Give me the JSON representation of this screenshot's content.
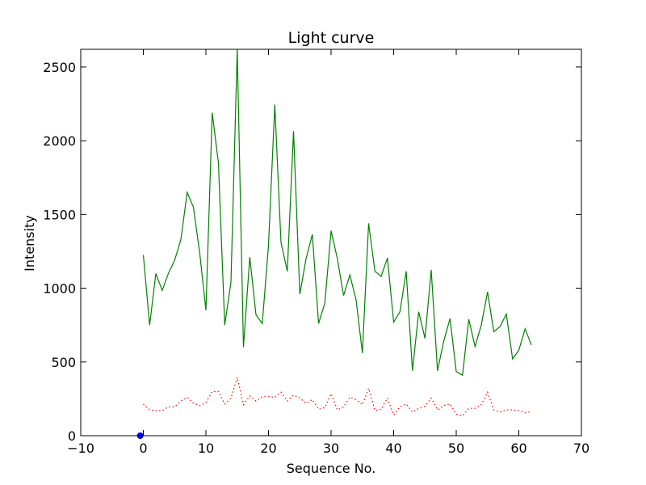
{
  "chart_data": {
    "type": "line",
    "title": "Light curve",
    "xlabel": "Sequence No.",
    "ylabel": "Intensity",
    "xlim": [
      -10,
      70
    ],
    "ylim": [
      0,
      2620
    ],
    "xticks": [
      -10,
      0,
      10,
      20,
      30,
      40,
      50,
      60,
      70
    ],
    "yticks": [
      0,
      500,
      1000,
      1500,
      2000,
      2500
    ],
    "grid": false,
    "legend": "none",
    "series": [
      {
        "style": "solid",
        "color": "#008000",
        "x": [
          0,
          1,
          2,
          3,
          4,
          5,
          6,
          7,
          8,
          9,
          10,
          11,
          12,
          13,
          14,
          15,
          16,
          17,
          18,
          19,
          20,
          21,
          22,
          23,
          24,
          25,
          26,
          27,
          28,
          29,
          30,
          31,
          32,
          33,
          34,
          35,
          36,
          37,
          38,
          39,
          40,
          41,
          42,
          43,
          44,
          45,
          46,
          47,
          48,
          49,
          50,
          51,
          52,
          53,
          54,
          55,
          56,
          57,
          58,
          59,
          60,
          61,
          62
        ],
        "y": [
          1225,
          750,
          1100,
          985,
          1100,
          1190,
          1330,
          1650,
          1550,
          1240,
          850,
          2190,
          1850,
          750,
          1040,
          2620,
          600,
          1210,
          820,
          760,
          1290,
          2245,
          1310,
          1115,
          2065,
          960,
          1200,
          1365,
          760,
          900,
          1390,
          1200,
          950,
          1090,
          920,
          560,
          1440,
          1115,
          1080,
          1205,
          770,
          840,
          1115,
          440,
          840,
          660,
          1125,
          440,
          640,
          795,
          435,
          410,
          790,
          605,
          750,
          975,
          705,
          740,
          825,
          520,
          580,
          725,
          615
        ]
      },
      {
        "style": "dotted",
        "color": "#ff0000",
        "x": [
          0,
          1,
          2,
          3,
          4,
          5,
          6,
          7,
          8,
          9,
          10,
          11,
          12,
          13,
          14,
          15,
          16,
          17,
          18,
          19,
          20,
          21,
          22,
          23,
          24,
          25,
          26,
          27,
          28,
          29,
          30,
          31,
          32,
          33,
          34,
          35,
          36,
          37,
          38,
          39,
          40,
          41,
          42,
          43,
          44,
          45,
          46,
          47,
          48,
          49,
          50,
          51,
          52,
          53,
          54,
          55,
          56,
          57,
          58,
          59,
          60,
          61,
          62
        ],
        "y": [
          215,
          175,
          170,
          170,
          195,
          195,
          235,
          260,
          220,
          205,
          225,
          300,
          300,
          215,
          255,
          395,
          210,
          270,
          235,
          265,
          265,
          260,
          295,
          235,
          275,
          255,
          220,
          245,
          180,
          190,
          285,
          175,
          195,
          260,
          245,
          210,
          320,
          170,
          180,
          255,
          140,
          195,
          215,
          160,
          185,
          200,
          255,
          175,
          205,
          215,
          145,
          135,
          185,
          185,
          210,
          295,
          175,
          160,
          175,
          175,
          170,
          155,
          165
        ]
      },
      {
        "style": "point",
        "color": "#0000ff",
        "x": [
          -0.5
        ],
        "y": [
          0
        ]
      }
    ]
  }
}
